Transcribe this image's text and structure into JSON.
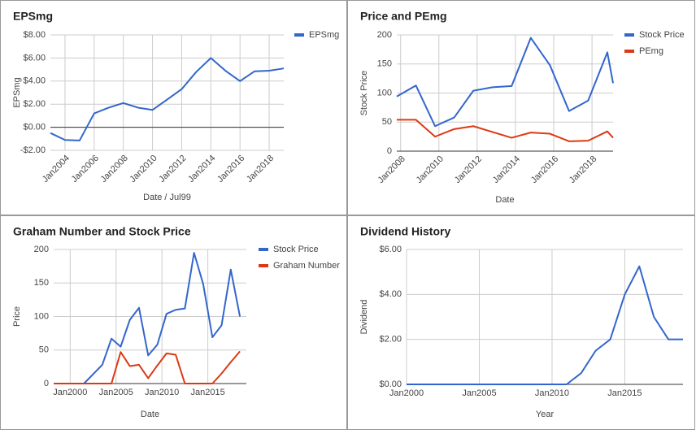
{
  "chart_data": [
    {
      "type": "line",
      "title": "EPSmg",
      "x_label": "Date / Jul99",
      "y_label": "EPSmg",
      "x": [
        2003,
        2004,
        2005,
        2006,
        2007,
        2008,
        2009,
        2010,
        2011,
        2012,
        2013,
        2014,
        2015,
        2016,
        2017,
        2018,
        2019
      ],
      "series": [
        {
          "name": "EPSmg",
          "color": "#3366cc",
          "values": [
            -0.5,
            -1.1,
            -1.15,
            1.2,
            1.7,
            2.1,
            1.7,
            1.5,
            2.4,
            3.3,
            4.8,
            6.0,
            4.9,
            4.0,
            4.85,
            4.9,
            5.1
          ]
        }
      ],
      "xlim": [
        2003,
        2019
      ],
      "ylim": [
        -2,
        8
      ],
      "xticks": [
        {
          "value": 2004,
          "label": "Jan2004"
        },
        {
          "value": 2006,
          "label": "Jan2006"
        },
        {
          "value": 2008,
          "label": "Jan2008"
        },
        {
          "value": 2010,
          "label": "Jan2010"
        },
        {
          "value": 2012,
          "label": "Jan2012"
        },
        {
          "value": 2014,
          "label": "Jan2014"
        },
        {
          "value": 2016,
          "label": "Jan2016"
        },
        {
          "value": 2018,
          "label": "Jan2018"
        }
      ],
      "yticks": [
        {
          "value": -2,
          "label": "-$2.00"
        },
        {
          "value": 0,
          "label": "$0.00"
        },
        {
          "value": 2,
          "label": "$2.00"
        },
        {
          "value": 4,
          "label": "$4.00"
        },
        {
          "value": 6,
          "label": "$6.00"
        },
        {
          "value": 8,
          "label": "$8.00"
        }
      ],
      "grid": true,
      "legend": "right"
    },
    {
      "type": "line",
      "title": "Price and PEmg",
      "x_label": "Date",
      "y_label": "Stock Price",
      "x": [
        2007.8,
        2008.8,
        2009.8,
        2010.8,
        2011.8,
        2012.8,
        2013.8,
        2014.8,
        2015.8,
        2016.8,
        2017.8,
        2018.8,
        2019.1
      ],
      "series": [
        {
          "name": "Stock Price",
          "color": "#3366cc",
          "values": [
            94,
            113,
            43,
            58,
            104,
            110,
            112,
            195,
            148,
            69,
            87,
            170,
            117
          ]
        },
        {
          "name": "PEmg",
          "color": "#dc3912",
          "values": [
            54,
            54,
            25,
            38,
            43,
            33,
            23,
            32,
            30,
            17,
            18,
            34,
            23
          ]
        }
      ],
      "xlim": [
        2007.8,
        2019.1
      ],
      "ylim": [
        0,
        200
      ],
      "xticks": [
        {
          "value": 2008,
          "label": "Jan2008"
        },
        {
          "value": 2010,
          "label": "Jan2010"
        },
        {
          "value": 2012,
          "label": "Jan2012"
        },
        {
          "value": 2014,
          "label": "Jan2014"
        },
        {
          "value": 2016,
          "label": "Jan2016"
        },
        {
          "value": 2018,
          "label": "Jan2018"
        }
      ],
      "yticks": [
        0,
        50,
        100,
        150,
        200
      ],
      "grid": true,
      "legend": "right"
    },
    {
      "type": "line",
      "title": "Graham Number and Stock Price",
      "x_label": "Date",
      "y_label": "Price",
      "x": [
        1998.2,
        2001.5,
        2003.5,
        2004.5,
        2005.5,
        2006.5,
        2007.5,
        2008.5,
        2009.5,
        2010.5,
        2011.5,
        2012.5,
        2013.5,
        2014.5,
        2015.5,
        2016.5,
        2017.5,
        2018.5
      ],
      "series": [
        {
          "name": "Stock Price",
          "color": "#3366cc",
          "values": [
            0,
            0,
            28,
            67,
            55,
            95,
            113,
            42,
            58,
            104,
            110,
            112,
            195,
            148,
            69,
            87,
            170,
            100
          ]
        },
        {
          "name": "Graham Number",
          "color": "#dc3912",
          "values": [
            0,
            0,
            0,
            0,
            47,
            26,
            28,
            8,
            27,
            45,
            43,
            0,
            0,
            0,
            0,
            15,
            32,
            48
          ]
        }
      ],
      "xlim": [
        1998.2,
        2019.2
      ],
      "ylim": [
        0,
        200
      ],
      "xticks": [
        {
          "value": 2000,
          "label": "Jan2000"
        },
        {
          "value": 2005,
          "label": "Jan2005"
        },
        {
          "value": 2010,
          "label": "Jan2010"
        },
        {
          "value": 2015,
          "label": "Jan2015"
        }
      ],
      "yticks": [
        0,
        50,
        100,
        150,
        200
      ],
      "grid": true,
      "legend": "right"
    },
    {
      "type": "line",
      "title": "Dividend History",
      "x_label": "Year",
      "y_label": "Dividend",
      "x": [
        2000,
        2001,
        2002,
        2003,
        2004,
        2005,
        2006,
        2007,
        2008,
        2009,
        2010,
        2011,
        2012,
        2013,
        2014,
        2015,
        2016,
        2017,
        2018,
        2019
      ],
      "series": [
        {
          "color": "#3366cc",
          "values": [
            0,
            0,
            0,
            0,
            0,
            0,
            0,
            0,
            0,
            0,
            0,
            0,
            0.5,
            1.5,
            2.0,
            4.0,
            5.25,
            3.0,
            2.0,
            2.0
          ]
        }
      ],
      "xlim": [
        2000,
        2019
      ],
      "ylim": [
        0,
        6
      ],
      "xticks": [
        {
          "value": 2000,
          "label": "Jan2000"
        },
        {
          "value": 2005,
          "label": "Jan2005"
        },
        {
          "value": 2010,
          "label": "Jan2010"
        },
        {
          "value": 2015,
          "label": "Jan2015"
        }
      ],
      "yticks": [
        {
          "value": 0,
          "label": "$0.00"
        },
        {
          "value": 2,
          "label": "$2.00"
        },
        {
          "value": 4,
          "label": "$4.00"
        },
        {
          "value": 6,
          "label": "$6.00"
        }
      ],
      "grid": true
    }
  ]
}
